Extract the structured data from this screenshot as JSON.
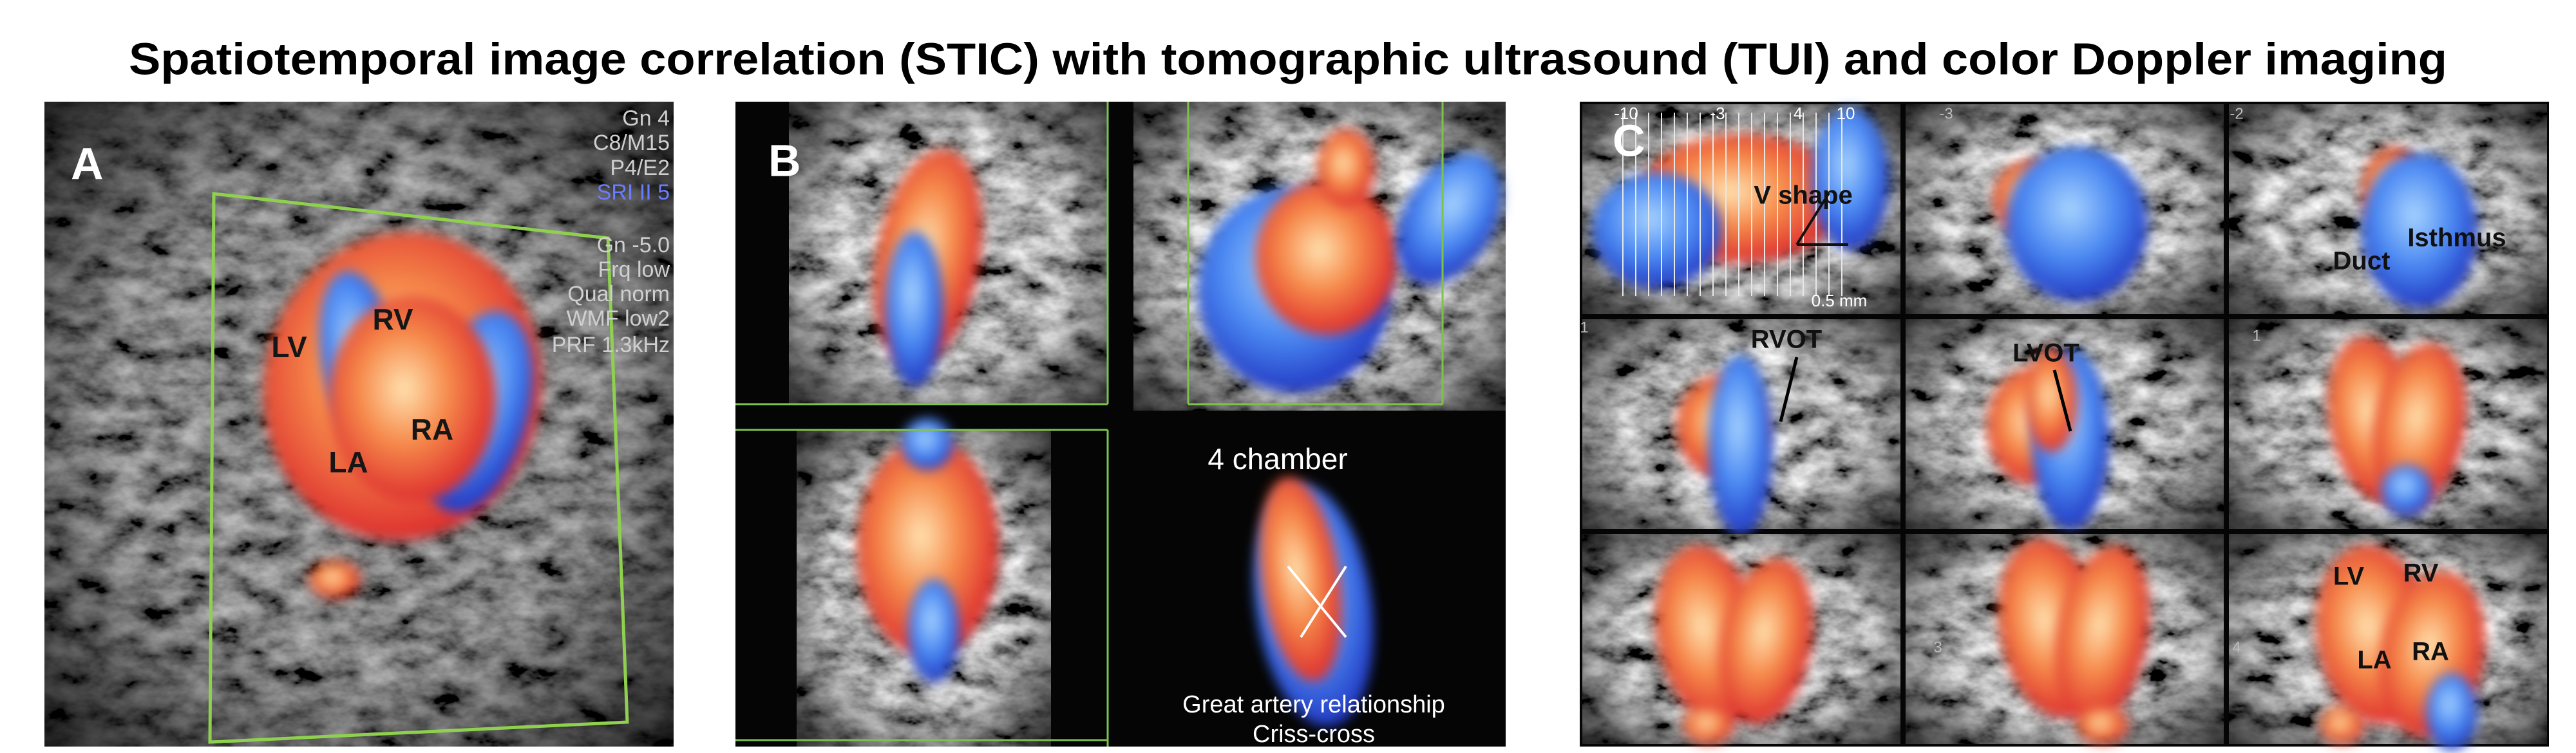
{
  "title": "Spatiotemporal image correlation (STIC)  with tomographic ultrasound (TUI)  and color Doppler imaging",
  "panels": {
    "A": {
      "letter": "A",
      "settings": [
        "Gn 4",
        "C8/M15",
        "P4/E2",
        "SRI II 5",
        "Gn -5.0",
        "Frq low",
        "Qual norm",
        "WMF low2",
        "PRF 1.3kHz"
      ],
      "labels": [
        "LV",
        "RV",
        "LA",
        "RA"
      ]
    },
    "B": {
      "letter": "B",
      "view_label": "4 chamber",
      "caption": [
        "Great artery relationship",
        "Criss-cross"
      ]
    },
    "C": {
      "letter": "C",
      "scale": "0.5 mm",
      "ruler": [
        "-10",
        "-3",
        "4",
        "10"
      ],
      "slice_numbers": [
        "-3",
        "-2",
        "1",
        "1",
        "3",
        "4"
      ],
      "labels": [
        "V shape",
        "Duct",
        "Isthmus",
        "RVOT",
        "LVOT",
        "LV",
        "RV",
        "LA",
        "RA"
      ]
    }
  }
}
